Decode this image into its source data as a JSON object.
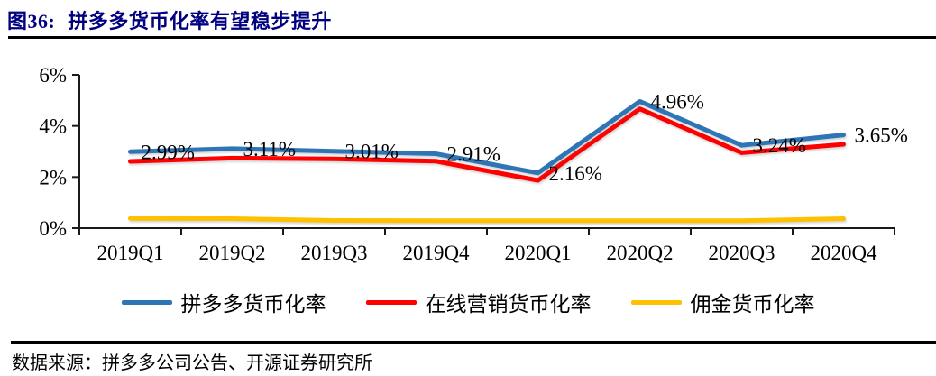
{
  "header": {
    "figure_label": "图36:",
    "title": "拼多多货币化率有望稳步提升"
  },
  "source": {
    "text": "数据来源：拼多多公司公告、开源证券研究所"
  },
  "colors": {
    "title_navy": "#000080",
    "axis_black": "#1a1a1a",
    "blue_series": "#2E75B6",
    "red_series": "#FF0000",
    "yellow_series": "#FFC000"
  },
  "chart_data": {
    "type": "line",
    "title": "拼多多货币化率有望稳步提升",
    "categories": [
      "2019Q1",
      "2019Q2",
      "2019Q3",
      "2019Q4",
      "2020Q1",
      "2020Q2",
      "2020Q3",
      "2020Q4"
    ],
    "series": [
      {
        "name": "拼多多货币化率",
        "color": "#2E75B6",
        "show_labels": true,
        "values": [
          2.99,
          3.11,
          3.01,
          2.91,
          2.16,
          4.96,
          3.24,
          3.65
        ]
      },
      {
        "name": "在线营销货币化率",
        "color": "#FF0000",
        "show_labels": false,
        "values": [
          2.61,
          2.74,
          2.71,
          2.62,
          1.87,
          4.67,
          2.95,
          3.28
        ]
      },
      {
        "name": "佣金货币化率",
        "color": "#FFC000",
        "show_labels": false,
        "values": [
          0.38,
          0.37,
          0.3,
          0.29,
          0.29,
          0.29,
          0.29,
          0.37
        ]
      }
    ],
    "data_labels": [
      "2.99%",
      "3.11%",
      "3.01%",
      "2.91%",
      "2.16%",
      "4.96%",
      "3.24%",
      "3.65%"
    ],
    "ylim": [
      0,
      6
    ],
    "ytick_step": 2,
    "ytick_suffix": "%",
    "data_label_suffix": "%",
    "grid": false,
    "legend_position": "bottom"
  }
}
